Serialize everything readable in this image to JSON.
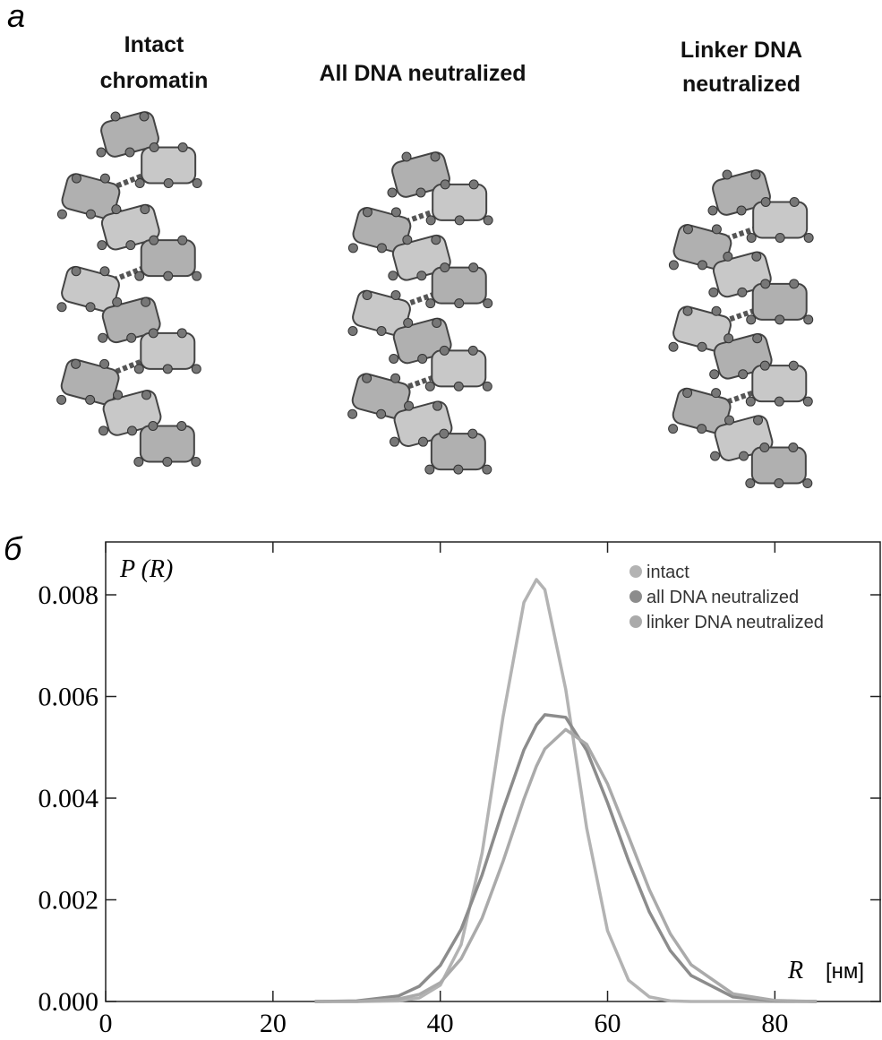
{
  "panel_a": {
    "label": "а",
    "titles": [
      [
        "Intact",
        "chromatin"
      ],
      [
        "All DNA neutralized"
      ],
      [
        "Linker DNA",
        "neutralized"
      ]
    ]
  },
  "chart_data": {
    "type": "line",
    "panel_label": "б",
    "y_label": "P (R)",
    "x_label": "R",
    "x_unit": "[нм]",
    "x": [
      25,
      30,
      35,
      37.5,
      40,
      42.5,
      45,
      47.5,
      50,
      51.5,
      52.5,
      55,
      57.5,
      60,
      62.5,
      65,
      67.5,
      70,
      75,
      80,
      85
    ],
    "series": [
      {
        "name": "intact",
        "color": "#b3b3b3",
        "values": [
          0,
          0,
          1e-05,
          7e-05,
          0.00032,
          0.00112,
          0.00292,
          0.00559,
          0.00785,
          0.0083,
          0.0081,
          0.00614,
          0.00341,
          0.00139,
          0.00042,
          9e-05,
          1e-05,
          0,
          0,
          0,
          0
        ]
      },
      {
        "name": "all DNA neutralized",
        "color": "#8c8c8c",
        "values": [
          0,
          1e-05,
          0.00011,
          0.0003,
          0.00071,
          0.00142,
          0.00249,
          0.00377,
          0.00495,
          0.00544,
          0.00564,
          0.00559,
          0.00494,
          0.00391,
          0.00277,
          0.00176,
          0.001,
          0.00051,
          9e-05,
          1e-05,
          0
        ]
      },
      {
        "name": "linker DNA neutralized",
        "color": "#aaaaaa",
        "values": [
          0,
          0,
          5e-05,
          0.00014,
          0.00037,
          0.00084,
          0.00164,
          0.00275,
          0.00398,
          0.00463,
          0.00497,
          0.00535,
          0.00506,
          0.00428,
          0.00325,
          0.0022,
          0.00133,
          0.00072,
          0.00015,
          2e-05,
          0
        ]
      }
    ],
    "xlim": [
      0,
      92.7
    ],
    "xticks": [
      0,
      20,
      40,
      60,
      80
    ],
    "ylim": [
      0,
      0.00904
    ],
    "yticks": [
      {
        "value": 0,
        "label": "0.000"
      },
      0.002,
      0.004,
      0.006,
      0.008
    ],
    "legend": "top-right"
  }
}
